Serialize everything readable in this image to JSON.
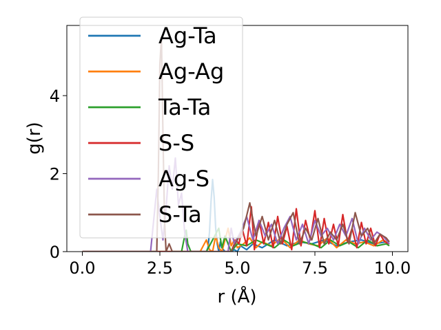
{
  "chart_data": {
    "type": "line",
    "title": "",
    "xlabel": "r (Å)",
    "ylabel": "g(r)",
    "xlim": [
      -0.5,
      10.5
    ],
    "ylim": [
      0,
      5.8
    ],
    "x_ticks": [
      0.0,
      2.5,
      5.0,
      7.5,
      10.0
    ],
    "x_tick_labels": [
      "0.0",
      "2.5",
      "5.0",
      "7.5",
      "10.0"
    ],
    "y_ticks": [
      0,
      2,
      4
    ],
    "y_tick_labels": [
      "0",
      "2",
      "4"
    ],
    "grid": false,
    "legend_position": "upper-left",
    "series": [
      {
        "name": "Ag-Ta",
        "color": "#1f77b4",
        "x": [
          0.0,
          4.0,
          4.05,
          4.1,
          4.15,
          4.2,
          4.25,
          4.3,
          4.35,
          4.4,
          4.45,
          4.5,
          4.6,
          4.7,
          4.8,
          4.9,
          5.0,
          5.1,
          5.3,
          5.5,
          5.8,
          6.2,
          6.6,
          7.0,
          7.4,
          7.8,
          8.2,
          8.6,
          9.0,
          9.4,
          9.8,
          9.9
        ],
        "y": [
          0.0,
          0.0,
          0.1,
          0.5,
          1.3,
          1.85,
          1.4,
          0.6,
          0.2,
          0.0,
          0.25,
          0.1,
          0.0,
          0.0,
          0.0,
          0.05,
          0.0,
          0.15,
          0.05,
          0.2,
          0.1,
          0.3,
          0.15,
          0.25,
          0.2,
          0.3,
          0.15,
          0.25,
          0.3,
          0.2,
          0.25,
          0.2
        ]
      },
      {
        "name": "Ag-Ag",
        "color": "#ff7f0e",
        "x": [
          0.0,
          3.8,
          3.9,
          4.0,
          4.1,
          4.2,
          4.3,
          4.4,
          4.5,
          4.6,
          4.7,
          4.8,
          4.9,
          5.0,
          5.2,
          5.4,
          5.6,
          5.8,
          6.1,
          6.4,
          6.7,
          7.0,
          7.3,
          7.6,
          7.9,
          8.2,
          8.5,
          8.8,
          9.1,
          9.4,
          9.7,
          9.9
        ],
        "y": [
          0.0,
          0.0,
          0.15,
          0.3,
          0.05,
          0.0,
          0.4,
          0.1,
          0.0,
          0.3,
          0.6,
          0.15,
          0.3,
          0.1,
          0.2,
          0.35,
          0.1,
          0.25,
          0.15,
          0.35,
          0.1,
          0.3,
          0.2,
          0.15,
          0.35,
          0.1,
          0.3,
          0.2,
          0.25,
          0.15,
          0.3,
          0.2
        ]
      },
      {
        "name": "Ta-Ta",
        "color": "#2ca02c",
        "x": [
          0.0,
          3.2,
          3.3,
          3.35,
          3.4,
          3.5,
          3.6,
          4.0,
          4.2,
          4.4,
          4.5,
          4.6,
          4.8,
          5.0,
          5.3,
          5.6,
          5.9,
          6.2,
          6.5,
          6.8,
          7.1,
          7.4,
          7.7,
          8.0,
          8.3,
          8.6,
          8.9,
          9.2,
          9.5,
          9.8,
          9.9
        ],
        "y": [
          0.0,
          0.0,
          0.4,
          0.55,
          0.2,
          0.0,
          0.0,
          0.0,
          0.3,
          0.6,
          0.1,
          0.4,
          0.0,
          0.2,
          0.15,
          0.3,
          0.2,
          0.1,
          0.3,
          0.15,
          0.25,
          0.2,
          0.1,
          0.3,
          0.15,
          0.25,
          0.1,
          0.3,
          0.15,
          0.2,
          0.15
        ]
      },
      {
        "name": "S-S",
        "color": "#d62728",
        "x": [
          0.0,
          4.8,
          4.95,
          5.05,
          5.15,
          5.3,
          5.45,
          5.55,
          5.7,
          5.85,
          6.0,
          6.15,
          6.3,
          6.45,
          6.6,
          6.75,
          6.9,
          7.05,
          7.2,
          7.35,
          7.5,
          7.65,
          7.8,
          7.95,
          8.1,
          8.25,
          8.4,
          8.55,
          8.7,
          8.85,
          9.0,
          9.15,
          9.3,
          9.45,
          9.6,
          9.75,
          9.9
        ],
        "y": [
          0.0,
          0.0,
          0.3,
          0.2,
          0.6,
          0.15,
          1.15,
          0.05,
          0.8,
          0.2,
          0.75,
          0.1,
          0.9,
          0.2,
          0.65,
          0.05,
          1.1,
          0.15,
          0.8,
          0.3,
          1.05,
          0.1,
          0.85,
          0.2,
          0.7,
          0.15,
          0.95,
          0.25,
          0.6,
          0.1,
          0.75,
          0.2,
          0.6,
          0.15,
          0.45,
          0.25,
          0.2
        ]
      },
      {
        "name": "Ag-S",
        "color": "#9467bd",
        "x": [
          0.0,
          2.2,
          2.3,
          2.4,
          2.5,
          2.6,
          2.7,
          2.8,
          2.9,
          3.0,
          3.1,
          3.2,
          3.3,
          3.4,
          4.7,
          4.8,
          4.9,
          5.1,
          5.3,
          5.5,
          5.7,
          5.9,
          6.1,
          6.3,
          6.5,
          6.7,
          6.9,
          7.1,
          7.3,
          7.5,
          7.7,
          7.9,
          8.1,
          8.3,
          8.5,
          8.7,
          8.9,
          9.1,
          9.3,
          9.5,
          9.7,
          9.9
        ],
        "y": [
          0.0,
          0.0,
          0.8,
          1.6,
          0.9,
          0.3,
          1.1,
          2.2,
          1.6,
          2.4,
          1.2,
          1.5,
          0.5,
          0.0,
          0.0,
          0.6,
          0.2,
          0.5,
          0.9,
          0.3,
          0.8,
          0.4,
          0.7,
          0.2,
          0.6,
          0.9,
          0.3,
          0.7,
          0.2,
          0.8,
          0.4,
          0.6,
          0.3,
          0.7,
          0.4,
          0.85,
          0.2,
          0.6,
          0.3,
          0.5,
          0.4,
          0.2
        ]
      },
      {
        "name": "S-Ta",
        "color": "#8c564b",
        "x": [
          0.0,
          2.4,
          2.45,
          2.5,
          2.55,
          2.6,
          2.65,
          2.7,
          2.8,
          2.9,
          3.0,
          3.2,
          4.8,
          5.0,
          5.2,
          5.4,
          5.6,
          5.8,
          6.0,
          6.2,
          6.4,
          6.6,
          6.8,
          7.0,
          7.2,
          7.4,
          7.6,
          7.8,
          8.0,
          8.2,
          8.4,
          8.6,
          8.8,
          9.0,
          9.2,
          9.4,
          9.6,
          9.8,
          9.9
        ],
        "y": [
          0.0,
          0.0,
          2.0,
          4.8,
          5.5,
          3.0,
          0.8,
          0.0,
          0.2,
          0.0,
          0.0,
          0.0,
          0.0,
          0.3,
          0.6,
          1.25,
          0.4,
          0.9,
          0.3,
          0.8,
          0.2,
          0.7,
          1.0,
          0.2,
          0.6,
          0.3,
          0.85,
          0.2,
          0.5,
          0.3,
          0.7,
          0.2,
          1.0,
          0.4,
          0.6,
          0.2,
          0.45,
          0.35,
          0.25
        ]
      }
    ]
  }
}
